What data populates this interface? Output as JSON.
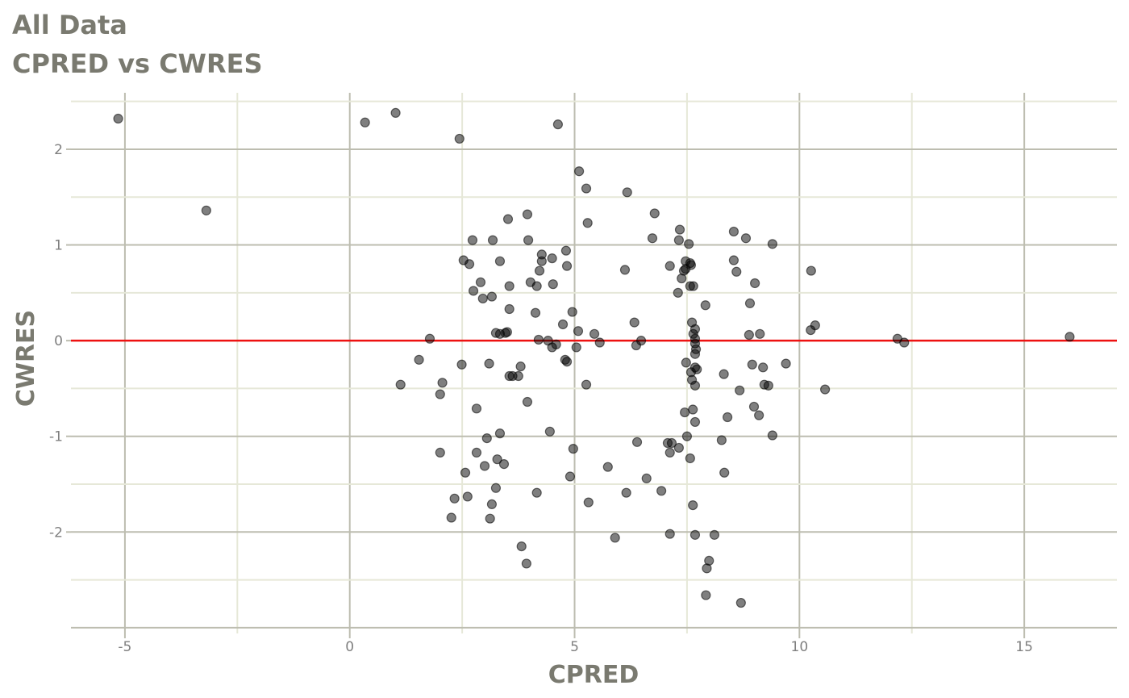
{
  "chart_data": {
    "type": "scatter",
    "title": "All Data",
    "subtitle": "CPRED vs CWRES",
    "xlabel": "CPRED",
    "ylabel": "CWRES",
    "xlim": [
      -6.2,
      17.06
    ],
    "ylim": [
      -3.06,
      2.59
    ],
    "xticks": [
      -5,
      0,
      5,
      10,
      15
    ],
    "yticks": [
      -2,
      -1,
      0,
      1,
      2
    ],
    "grid": true,
    "reference_line": {
      "y": 0,
      "color": "#ee1111"
    },
    "point_color": "#000000",
    "points": [
      [
        -5.15,
        2.32
      ],
      [
        -3.19,
        1.36
      ],
      [
        0.34,
        2.28
      ],
      [
        1.02,
        2.38
      ],
      [
        2.44,
        2.11
      ],
      [
        4.63,
        2.26
      ],
      [
        5.1,
        1.77
      ],
      [
        5.26,
        1.59
      ],
      [
        6.17,
        1.55
      ],
      [
        5.29,
        1.23
      ],
      [
        6.78,
        1.33
      ],
      [
        7.34,
        1.16
      ],
      [
        8.54,
        1.14
      ],
      [
        3.95,
        1.32
      ],
      [
        3.52,
        1.27
      ],
      [
        2.73,
        1.05
      ],
      [
        3.18,
        1.05
      ],
      [
        3.97,
        1.05
      ],
      [
        6.73,
        1.07
      ],
      [
        7.32,
        1.05
      ],
      [
        8.81,
        1.07
      ],
      [
        7.54,
        1.01
      ],
      [
        9.4,
        1.01
      ],
      [
        4.81,
        0.94
      ],
      [
        4.27,
        0.9
      ],
      [
        2.53,
        0.84
      ],
      [
        2.66,
        0.8
      ],
      [
        3.34,
        0.83
      ],
      [
        4.27,
        0.83
      ],
      [
        4.5,
        0.86
      ],
      [
        4.83,
        0.78
      ],
      [
        4.22,
        0.73
      ],
      [
        6.12,
        0.74
      ],
      [
        7.12,
        0.78
      ],
      [
        7.47,
        0.83
      ],
      [
        7.57,
        0.81
      ],
      [
        7.59,
        0.79
      ],
      [
        7.47,
        0.75
      ],
      [
        7.43,
        0.73
      ],
      [
        7.38,
        0.65
      ],
      [
        8.54,
        0.84
      ],
      [
        8.6,
        0.72
      ],
      [
        10.26,
        0.73
      ],
      [
        2.91,
        0.61
      ],
      [
        4.02,
        0.61
      ],
      [
        3.55,
        0.57
      ],
      [
        4.16,
        0.57
      ],
      [
        4.52,
        0.59
      ],
      [
        2.75,
        0.52
      ],
      [
        3.16,
        0.46
      ],
      [
        2.96,
        0.44
      ],
      [
        7.3,
        0.5
      ],
      [
        7.64,
        0.57
      ],
      [
        7.57,
        0.57
      ],
      [
        9.01,
        0.6
      ],
      [
        7.91,
        0.37
      ],
      [
        8.9,
        0.39
      ],
      [
        3.55,
        0.33
      ],
      [
        4.13,
        0.29
      ],
      [
        4.95,
        0.3
      ],
      [
        6.33,
        0.19
      ],
      [
        7.61,
        0.19
      ],
      [
        4.74,
        0.17
      ],
      [
        10.35,
        0.16
      ],
      [
        10.25,
        0.11
      ],
      [
        5.08,
        0.1
      ],
      [
        3.25,
        0.08
      ],
      [
        3.34,
        0.07
      ],
      [
        3.46,
        0.08
      ],
      [
        3.5,
        0.09
      ],
      [
        5.44,
        0.07
      ],
      [
        7.68,
        0.12
      ],
      [
        7.64,
        0.07
      ],
      [
        8.88,
        0.06
      ],
      [
        9.12,
        0.07
      ],
      [
        1.78,
        0.02
      ],
      [
        4.2,
        0.01
      ],
      [
        4.41,
        0.0
      ],
      [
        6.48,
        0.0
      ],
      [
        7.68,
        0.02
      ],
      [
        12.18,
        0.02
      ],
      [
        12.33,
        -0.02
      ],
      [
        16.01,
        0.04
      ],
      [
        5.56,
        -0.02
      ],
      [
        4.59,
        -0.04
      ],
      [
        4.5,
        -0.07
      ],
      [
        5.04,
        -0.07
      ],
      [
        6.37,
        -0.05
      ],
      [
        7.68,
        -0.03
      ],
      [
        7.7,
        -0.09
      ],
      [
        7.68,
        -0.14
      ],
      [
        1.54,
        -0.2
      ],
      [
        4.79,
        -0.2
      ],
      [
        4.83,
        -0.22
      ],
      [
        2.49,
        -0.25
      ],
      [
        3.1,
        -0.24
      ],
      [
        3.8,
        -0.27
      ],
      [
        7.48,
        -0.23
      ],
      [
        7.68,
        -0.28
      ],
      [
        7.72,
        -0.3
      ],
      [
        8.95,
        -0.25
      ],
      [
        9.19,
        -0.28
      ],
      [
        9.7,
        -0.24
      ],
      [
        3.55,
        -0.37
      ],
      [
        3.62,
        -0.37
      ],
      [
        3.75,
        -0.37
      ],
      [
        7.59,
        -0.33
      ],
      [
        8.32,
        -0.35
      ],
      [
        7.61,
        -0.41
      ],
      [
        2.06,
        -0.44
      ],
      [
        1.13,
        -0.46
      ],
      [
        5.26,
        -0.46
      ],
      [
        7.68,
        -0.47
      ],
      [
        9.22,
        -0.46
      ],
      [
        9.31,
        -0.47
      ],
      [
        8.67,
        -0.52
      ],
      [
        10.57,
        -0.51
      ],
      [
        2.01,
        -0.56
      ],
      [
        3.95,
        -0.64
      ],
      [
        2.82,
        -0.71
      ],
      [
        7.63,
        -0.72
      ],
      [
        8.99,
        -0.69
      ],
      [
        7.45,
        -0.75
      ],
      [
        9.1,
        -0.78
      ],
      [
        8.4,
        -0.8
      ],
      [
        7.68,
        -0.85
      ],
      [
        9.4,
        -0.99
      ],
      [
        3.34,
        -0.97
      ],
      [
        4.45,
        -0.95
      ],
      [
        7.5,
        -1.0
      ],
      [
        3.05,
        -1.02
      ],
      [
        8.27,
        -1.04
      ],
      [
        6.39,
        -1.06
      ],
      [
        7.07,
        -1.07
      ],
      [
        7.16,
        -1.07
      ],
      [
        7.32,
        -1.12
      ],
      [
        4.97,
        -1.13
      ],
      [
        2.01,
        -1.17
      ],
      [
        2.82,
        -1.17
      ],
      [
        7.12,
        -1.17
      ],
      [
        7.57,
        -1.23
      ],
      [
        3.28,
        -1.24
      ],
      [
        3.43,
        -1.29
      ],
      [
        3.0,
        -1.31
      ],
      [
        5.74,
        -1.32
      ],
      [
        2.57,
        -1.38
      ],
      [
        8.33,
        -1.38
      ],
      [
        4.9,
        -1.42
      ],
      [
        6.6,
        -1.44
      ],
      [
        3.25,
        -1.54
      ],
      [
        6.93,
        -1.57
      ],
      [
        4.16,
        -1.59
      ],
      [
        6.15,
        -1.59
      ],
      [
        2.62,
        -1.63
      ],
      [
        2.33,
        -1.65
      ],
      [
        5.31,
        -1.69
      ],
      [
        3.16,
        -1.71
      ],
      [
        7.63,
        -1.72
      ],
      [
        2.26,
        -1.85
      ],
      [
        3.12,
        -1.86
      ],
      [
        7.12,
        -2.02
      ],
      [
        7.68,
        -2.03
      ],
      [
        8.11,
        -2.03
      ],
      [
        5.9,
        -2.06
      ],
      [
        3.82,
        -2.15
      ],
      [
        7.99,
        -2.3
      ],
      [
        3.93,
        -2.33
      ],
      [
        7.94,
        -2.38
      ],
      [
        7.92,
        -2.66
      ],
      [
        8.7,
        -2.74
      ]
    ]
  }
}
